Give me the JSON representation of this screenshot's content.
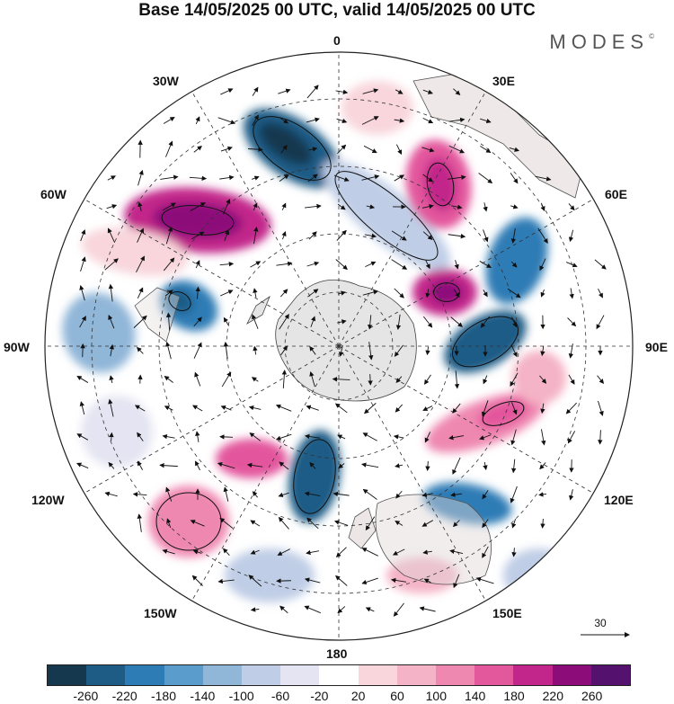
{
  "header": {
    "title": "Base 14/05/2025 00 UTC, valid 14/05/2025 00 UTC",
    "brand": "MODES",
    "brand_mark": "©"
  },
  "map": {
    "projection": "polar-stereographic-south",
    "meridian_labels": [
      "0",
      "30E",
      "60E",
      "90E",
      "120E",
      "150E",
      "180",
      "150W",
      "120W",
      "90W",
      "60W",
      "30W"
    ],
    "wind_reference_value": "30"
  },
  "colorbar": {
    "colors": [
      "#16384f",
      "#1e5c86",
      "#2e7cb5",
      "#5a9ccb",
      "#90b6d8",
      "#bfcde6",
      "#e4e4f2",
      "#ffffff",
      "#f8d6dc",
      "#f4b3c6",
      "#ef88b1",
      "#e3579d",
      "#c2268a",
      "#8c0c7a",
      "#55116e"
    ],
    "tick_labels": [
      "-260",
      "-220",
      "-180",
      "-140",
      "-100",
      "-60",
      "-20",
      "20",
      "60",
      "100",
      "140",
      "180",
      "220",
      "260"
    ]
  }
}
